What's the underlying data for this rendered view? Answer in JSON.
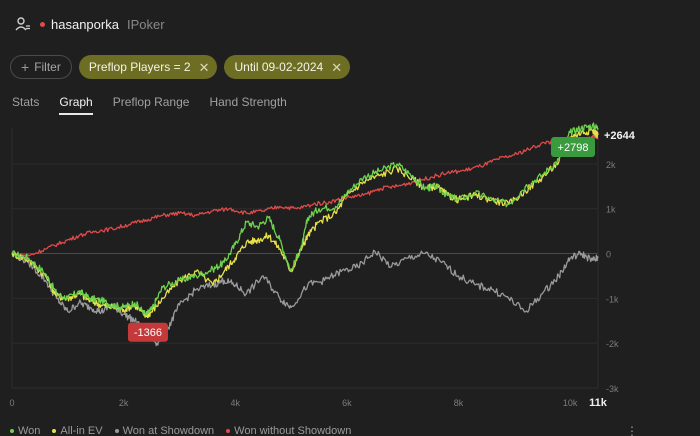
{
  "header": {
    "username": "hasanporka",
    "site": "IPoker",
    "status_color": "#e24b4b"
  },
  "filters": {
    "add_filter_label": "Filter",
    "chips": [
      {
        "label": "Preflop Players = 2"
      },
      {
        "label": "Until 09-02-2024"
      }
    ]
  },
  "tabs": [
    {
      "label": "Stats",
      "active": false
    },
    {
      "label": "Graph",
      "active": true
    },
    {
      "label": "Preflop Range",
      "active": false
    },
    {
      "label": "Hand Strength",
      "active": false
    }
  ],
  "legend": [
    {
      "label": "Won",
      "color": "#6ed24f"
    },
    {
      "label": "All-in EV",
      "color": "#e6e04a"
    },
    {
      "label": "Won at Showdown",
      "color": "#9a9a9a"
    },
    {
      "label": "Won without Showdown",
      "color": "#e04a4a"
    }
  ],
  "chart_data": {
    "type": "line",
    "x_ticks": [
      "0",
      "2k",
      "4k",
      "6k",
      "8k",
      "10k"
    ],
    "x_last_label": "11k",
    "y_ticks": [
      "2k",
      "1k",
      "0",
      "-1k",
      "-2k",
      "-3k"
    ],
    "xlim": [
      0,
      10500
    ],
    "ylim": [
      -3000,
      2800
    ],
    "annotations": {
      "final_won": "+2798",
      "final_ev": "+2644",
      "min_won": "-1366"
    },
    "series": [
      {
        "name": "Won",
        "color": "#6ed24f",
        "x": [
          0,
          300,
          600,
          800,
          1000,
          1200,
          1400,
          1600,
          1800,
          2000,
          2200,
          2400,
          2500,
          2700,
          3000,
          3300,
          3600,
          3800,
          4000,
          4200,
          4400,
          4600,
          4800,
          5000,
          5200,
          5300,
          5500,
          5800,
          6000,
          6300,
          6600,
          6900,
          7200,
          7400,
          7600,
          7800,
          8000,
          8300,
          8600,
          8900,
          9200,
          9500,
          9800,
          10000,
          10200,
          10400,
          10500
        ],
        "y": [
          0,
          -100,
          -450,
          -900,
          -1000,
          -850,
          -1000,
          -1050,
          -1150,
          -1200,
          -1100,
          -1366,
          -1250,
          -750,
          -600,
          -500,
          -350,
          -200,
          200,
          700,
          600,
          800,
          300,
          -400,
          200,
          800,
          1000,
          1050,
          1350,
          1700,
          1850,
          2000,
          1700,
          1450,
          1500,
          1300,
          1200,
          1350,
          1200,
          1100,
          1500,
          1750,
          2100,
          2700,
          2800,
          2850,
          2798
        ]
      },
      {
        "name": "All-in EV",
        "color": "#e6e04a",
        "x": [
          0,
          300,
          600,
          800,
          1000,
          1200,
          1400,
          1600,
          1800,
          2000,
          2200,
          2400,
          2500,
          2700,
          3000,
          3300,
          3600,
          3800,
          4000,
          4200,
          4400,
          4600,
          4800,
          5000,
          5200,
          5300,
          5500,
          5800,
          6000,
          6300,
          6600,
          6900,
          7200,
          7400,
          7600,
          7800,
          8000,
          8300,
          8600,
          8900,
          9200,
          9500,
          9800,
          10000,
          10200,
          10400,
          10500
        ],
        "y": [
          0,
          -150,
          -500,
          -950,
          -1000,
          -900,
          -1050,
          -1150,
          -1200,
          -1250,
          -1150,
          -1400,
          -1300,
          -1000,
          -600,
          -400,
          -700,
          -400,
          -100,
          250,
          300,
          400,
          100,
          -400,
          150,
          400,
          700,
          900,
          1300,
          1600,
          1750,
          1900,
          1650,
          1450,
          1500,
          1300,
          1200,
          1300,
          1200,
          1100,
          1400,
          1700,
          2050,
          2600,
          2700,
          2750,
          2644
        ]
      },
      {
        "name": "Won at Showdown",
        "color": "#9a9a9a",
        "x": [
          0,
          300,
          600,
          800,
          1000,
          1200,
          1400,
          1600,
          1800,
          2000,
          2200,
          2400,
          2600,
          2800,
          3000,
          3300,
          3600,
          3800,
          4000,
          4200,
          4500,
          4800,
          5000,
          5300,
          5600,
          5900,
          6200,
          6500,
          6800,
          7100,
          7400,
          7700,
          8000,
          8300,
          8600,
          8900,
          9200,
          9500,
          9800,
          10000,
          10200,
          10400,
          10500
        ],
        "y": [
          0,
          -200,
          -600,
          -1000,
          -1300,
          -1100,
          -1200,
          -1300,
          -1150,
          -1350,
          -1500,
          -1750,
          -2000,
          -1650,
          -1150,
          -800,
          -700,
          -600,
          -700,
          -900,
          -500,
          -1000,
          -1200,
          -700,
          -600,
          -400,
          -300,
          50,
          -300,
          -100,
          0,
          -200,
          -500,
          -700,
          -800,
          -1000,
          -1300,
          -900,
          -500,
          -100,
          0,
          -150,
          -100
        ]
      },
      {
        "name": "Won without Showdown",
        "color": "#e04a4a",
        "x": [
          0,
          300,
          600,
          900,
          1200,
          1500,
          1800,
          2100,
          2400,
          2700,
          3000,
          3300,
          3600,
          3900,
          4200,
          4500,
          4800,
          5100,
          5400,
          5700,
          6000,
          6300,
          6600,
          6900,
          7200,
          7500,
          7800,
          8100,
          8400,
          8700,
          9000,
          9300,
          9600,
          9800,
          10000,
          10200,
          10400,
          10500
        ],
        "y": [
          0,
          -50,
          100,
          250,
          400,
          500,
          550,
          650,
          750,
          850,
          900,
          850,
          950,
          1000,
          900,
          950,
          1050,
          1000,
          1100,
          1150,
          1250,
          1300,
          1450,
          1500,
          1600,
          1700,
          1800,
          1850,
          1950,
          2100,
          2200,
          2350,
          2500,
          2400,
          2250,
          2450,
          2600,
          2580
        ]
      }
    ]
  }
}
